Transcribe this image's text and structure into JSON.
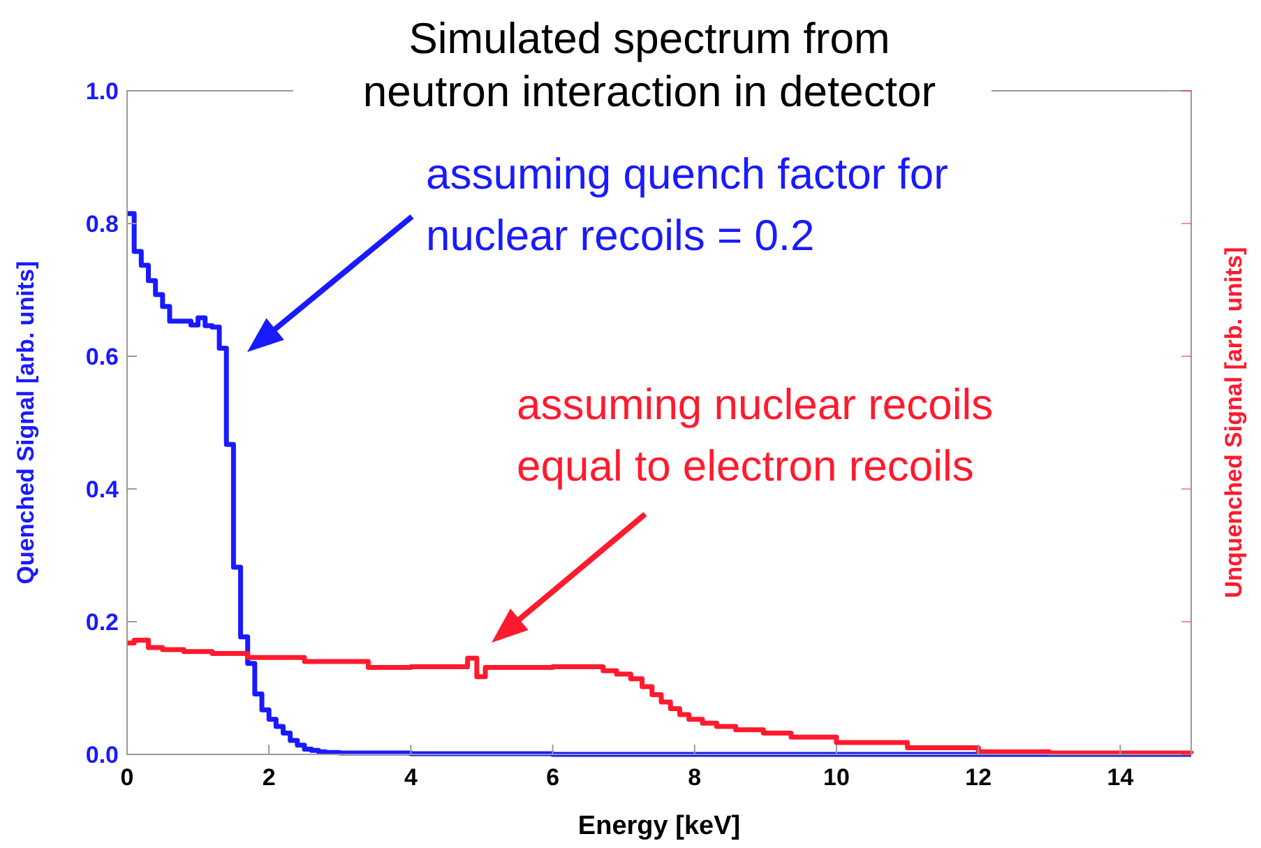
{
  "chart_data": {
    "type": "step",
    "title": "Simulated spectrum from\nneutron interaction in detector",
    "xlabel": "Energy [keV]",
    "ylabel": "Quenched Signal [arb. units]",
    "y2label": "Unquenched Signal [arb. units]",
    "xlim": [
      0,
      15
    ],
    "xticks": [
      0,
      2,
      4,
      6,
      8,
      10,
      12,
      14
    ],
    "ylim": [
      0,
      1
    ],
    "yticks": [
      {
        "value": 0,
        "label": "0.0"
      },
      {
        "value": 0.2,
        "label": "0.2"
      },
      {
        "value": 0.4,
        "label": "0.4"
      },
      {
        "value": 0.6,
        "label": "0.6"
      },
      {
        "value": 0.8,
        "label": "0.8"
      },
      {
        "value": 1,
        "label": "1.0"
      }
    ],
    "grid": false,
    "series": [
      {
        "color": "#1a1aff",
        "x": [
          0,
          0.1,
          0.2,
          0.3,
          0.4,
          0.5,
          0.6,
          0.9,
          1.0,
          1.1,
          1.2,
          1.3,
          1.4,
          1.5,
          1.6,
          1.7,
          1.8,
          1.9,
          2.0,
          2.1,
          2.2,
          2.3,
          2.4,
          2.5,
          2.6,
          2.7,
          2.8,
          3.0,
          4.0,
          6.0,
          15
        ],
        "values": [
          0.815,
          0.758,
          0.737,
          0.714,
          0.693,
          0.675,
          0.653,
          0.647,
          0.658,
          0.646,
          0.644,
          0.612,
          0.467,
          0.282,
          0.177,
          0.137,
          0.091,
          0.067,
          0.053,
          0.042,
          0.032,
          0.021,
          0.014,
          0.008,
          0.006,
          0.004,
          0.003,
          0.002,
          0.001,
          0,
          0
        ]
      },
      {
        "color": "#ff1a2e",
        "x": [
          0,
          0.1,
          0.3,
          0.5,
          0.8,
          1.2,
          1.7,
          2.5,
          3.4,
          4.0,
          4.8,
          4.93,
          5.05,
          6.0,
          6.71,
          6.9,
          7.1,
          7.26,
          7.4,
          7.53,
          7.66,
          7.79,
          7.92,
          8.11,
          8.31,
          8.58,
          8.97,
          9.36,
          10,
          11,
          12,
          13,
          15
        ],
        "values": [
          0.168,
          0.172,
          0.161,
          0.158,
          0.155,
          0.152,
          0.146,
          0.14,
          0.131,
          0.132,
          0.145,
          0.117,
          0.131,
          0.132,
          0.126,
          0.121,
          0.114,
          0.102,
          0.09,
          0.079,
          0.069,
          0.06,
          0.053,
          0.047,
          0.042,
          0.037,
          0.032,
          0.026,
          0.018,
          0.01,
          0.004,
          0.002,
          0.001
        ]
      }
    ],
    "annotations": [
      "assuming quench factor for\nnuclear recoils = 0.2",
      "assuming nuclear recoils\nequal to electron recoils"
    ]
  }
}
